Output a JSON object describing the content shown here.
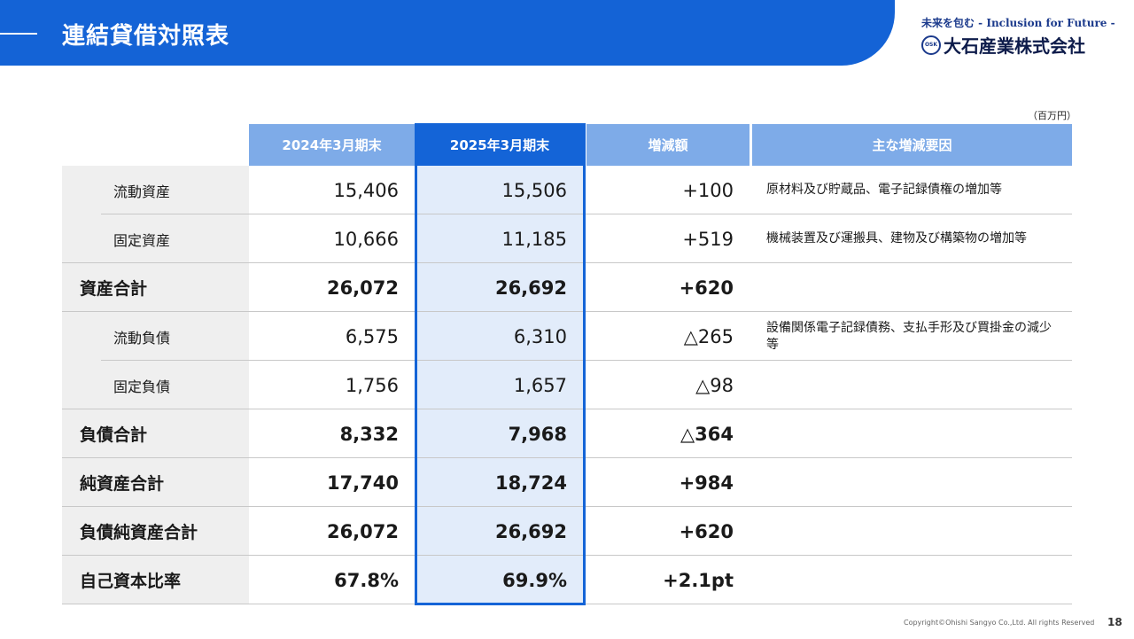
{
  "header": {
    "title": "連結貸借対照表"
  },
  "logo": {
    "tagline": "未来を包む - Inclusion for Future -",
    "mark_text": "OSK",
    "company": "大石産業株式会社"
  },
  "unit_note": "（百万円）",
  "table": {
    "columns": [
      "2024年3月期末",
      "2025年3月期末",
      "増減額",
      "主な増減要因"
    ],
    "rows": [
      {
        "label": "流動資産",
        "sub": true,
        "v2024": "15,406",
        "v2025": "15,506",
        "diff": "+100",
        "reason": "原材料及び貯蔵品、電子記録債権の増加等"
      },
      {
        "label": "固定資産",
        "sub": true,
        "v2024": "10,666",
        "v2025": "11,185",
        "diff": "+519",
        "reason": "機械装置及び運搬具、建物及び構築物の増加等"
      },
      {
        "label": "資産合計",
        "sub": false,
        "v2024": "26,072",
        "v2025": "26,692",
        "diff": "+620",
        "reason": ""
      },
      {
        "label": "流動負債",
        "sub": true,
        "v2024": "6,575",
        "v2025": "6,310",
        "diff": "△265",
        "reason": "設備関係電子記録債務、支払手形及び買掛金の減少等"
      },
      {
        "label": "固定負債",
        "sub": true,
        "v2024": "1,756",
        "v2025": "1,657",
        "diff": "△98",
        "reason": ""
      },
      {
        "label": "負債合計",
        "sub": false,
        "v2024": "8,332",
        "v2025": "7,968",
        "diff": "△364",
        "reason": ""
      },
      {
        "label": "純資産合計",
        "sub": false,
        "v2024": "17,740",
        "v2025": "18,724",
        "diff": "+984",
        "reason": ""
      },
      {
        "label": "負債純資産合計",
        "sub": false,
        "v2024": "26,072",
        "v2025": "26,692",
        "diff": "+620",
        "reason": ""
      },
      {
        "label": "自己資本比率",
        "sub": false,
        "v2024": "67.8%",
        "v2025": "69.9%",
        "diff": "+2.1pt",
        "reason": ""
      }
    ]
  },
  "footer": {
    "copyright": "Copyright©Ohishi Sangyo Co.,Ltd. All rights Reserved",
    "page": "18"
  },
  "colors": {
    "brand_blue": "#1464d7",
    "header_light_blue": "#7eabe8",
    "highlight_fill": "#e2ecfa",
    "label_bg": "#efefef"
  }
}
